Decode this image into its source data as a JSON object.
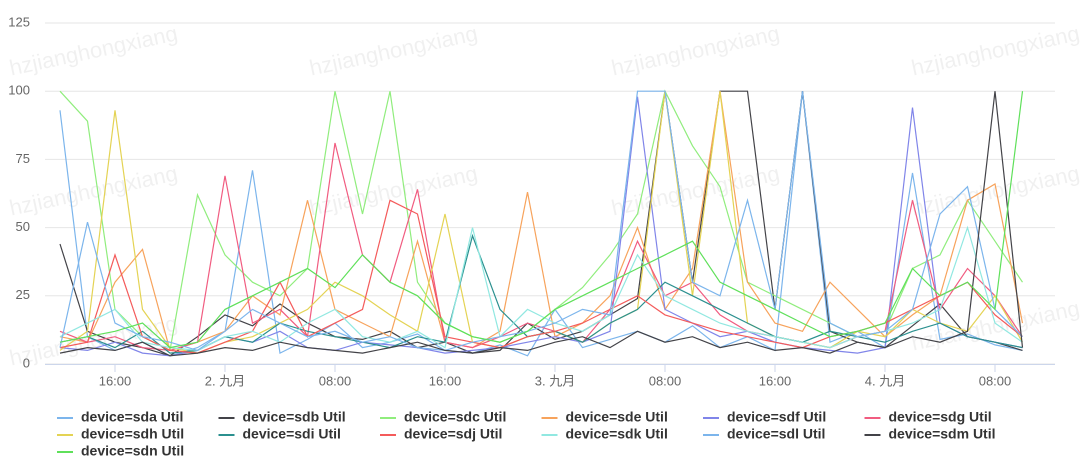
{
  "watermark": "hzjianghongxiang",
  "chart_data": {
    "type": "line",
    "x": [
      12,
      14,
      16,
      18,
      20,
      22,
      24,
      26,
      28,
      30,
      32,
      34,
      36,
      38,
      40,
      42,
      44,
      46,
      48,
      50,
      52,
      54,
      56,
      58,
      60,
      62,
      64,
      66,
      68,
      70,
      72,
      74,
      76,
      78,
      80,
      82
    ],
    "xlim": [
      11.6,
      83.6
    ],
    "xticks": [
      {
        "value": 16,
        "label": "16:00"
      },
      {
        "value": 24,
        "label": "2. 九月"
      },
      {
        "value": 32,
        "label": "08:00"
      },
      {
        "value": 40,
        "label": "16:00"
      },
      {
        "value": 48,
        "label": "3. 九月"
      },
      {
        "value": 56,
        "label": "08:00"
      },
      {
        "value": 64,
        "label": "16:00"
      },
      {
        "value": 72,
        "label": "4. 九月"
      },
      {
        "value": 80,
        "label": "08:00"
      }
    ],
    "ylim": [
      0,
      125
    ],
    "yticks": [
      0,
      25,
      50,
      75,
      100,
      125
    ],
    "grid": true,
    "series": [
      {
        "name": "device=sda Util",
        "color": "#7cb5ec",
        "values": [
          93,
          10,
          5,
          8,
          3,
          6,
          12,
          71,
          4,
          9,
          15,
          6,
          8,
          11,
          5,
          4,
          7,
          3,
          20,
          6,
          9,
          12,
          8,
          14,
          6,
          10,
          5,
          100,
          8,
          12,
          6,
          70,
          9,
          11,
          7,
          5
        ]
      },
      {
        "name": "device=sdb Util",
        "color": "#434348",
        "values": [
          44,
          12,
          8,
          6,
          3,
          10,
          18,
          14,
          22,
          15,
          10,
          9,
          12,
          6,
          8,
          4,
          5,
          15,
          9,
          12,
          18,
          24,
          100,
          30,
          100,
          100,
          20,
          100,
          12,
          8,
          6,
          14,
          22,
          10,
          8,
          5
        ]
      },
      {
        "name": "device=sdc Util",
        "color": "#90ed7d",
        "values": [
          100,
          89,
          20,
          10,
          5,
          62,
          40,
          30,
          25,
          35,
          100,
          55,
          100,
          30,
          15,
          10,
          8,
          12,
          20,
          28,
          40,
          55,
          100,
          80,
          65,
          30,
          25,
          20,
          15,
          10,
          12,
          35,
          40,
          60,
          45,
          30
        ]
      },
      {
        "name": "device=sde Util",
        "color": "#f7a35c",
        "values": [
          10,
          8,
          30,
          42,
          5,
          8,
          12,
          25,
          18,
          60,
          20,
          15,
          10,
          45,
          8,
          6,
          12,
          63,
          10,
          15,
          25,
          50,
          20,
          35,
          100,
          30,
          15,
          12,
          30,
          20,
          10,
          18,
          25,
          60,
          66,
          15
        ]
      },
      {
        "name": "device=sdf Util",
        "color": "#8085e9",
        "values": [
          6,
          5,
          8,
          4,
          3,
          5,
          10,
          8,
          12,
          6,
          5,
          8,
          7,
          6,
          4,
          5,
          6,
          8,
          10,
          8,
          12,
          98,
          20,
          15,
          10,
          12,
          8,
          6,
          5,
          4,
          6,
          94,
          15,
          10,
          8,
          6
        ]
      },
      {
        "name": "device=sdg Util",
        "color": "#f15c80",
        "values": [
          12,
          8,
          10,
          6,
          5,
          8,
          69,
          15,
          20,
          10,
          81,
          40,
          30,
          64,
          8,
          6,
          10,
          15,
          12,
          8,
          20,
          45,
          25,
          30,
          18,
          12,
          10,
          8,
          6,
          10,
          12,
          60,
          20,
          35,
          25,
          10
        ]
      },
      {
        "name": "device=sdh Util",
        "color": "#e4d354",
        "values": [
          5,
          12,
          93,
          20,
          6,
          4,
          8,
          10,
          15,
          20,
          30,
          25,
          18,
          12,
          55,
          8,
          6,
          10,
          12,
          8,
          15,
          20,
          100,
          25,
          100,
          15,
          10,
          8,
          6,
          12,
          10,
          20,
          15,
          12,
          25,
          8
        ]
      },
      {
        "name": "device=sdi Util",
        "color": "#2b908f",
        "values": [
          8,
          10,
          6,
          12,
          4,
          5,
          10,
          8,
          15,
          12,
          10,
          8,
          6,
          10,
          8,
          47,
          20,
          10,
          12,
          8,
          15,
          20,
          30,
          25,
          20,
          15,
          10,
          8,
          12,
          10,
          8,
          12,
          15,
          10,
          8,
          6
        ]
      },
      {
        "name": "device=sdj Util",
        "color": "#f45b5b",
        "values": [
          6,
          8,
          40,
          10,
          5,
          4,
          8,
          12,
          30,
          10,
          15,
          20,
          60,
          55,
          10,
          8,
          6,
          10,
          12,
          15,
          20,
          25,
          18,
          15,
          12,
          10,
          8,
          6,
          10,
          12,
          15,
          20,
          25,
          30,
          18,
          10
        ]
      },
      {
        "name": "device=sdk Util",
        "color": "#91e8e1",
        "values": [
          10,
          15,
          20,
          8,
          6,
          5,
          10,
          12,
          8,
          15,
          20,
          10,
          8,
          12,
          6,
          50,
          10,
          20,
          15,
          12,
          18,
          40,
          25,
          20,
          15,
          12,
          10,
          8,
          6,
          10,
          12,
          15,
          20,
          50,
          15,
          8
        ]
      },
      {
        "name": "device=sdl Util",
        "color": "#7cb5ec",
        "values": [
          6,
          52,
          15,
          10,
          8,
          5,
          12,
          20,
          15,
          10,
          12,
          8,
          10,
          6,
          5,
          8,
          10,
          12,
          15,
          20,
          18,
          100,
          100,
          30,
          25,
          60,
          20,
          100,
          15,
          10,
          12,
          20,
          55,
          65,
          20,
          10
        ]
      },
      {
        "name": "device=sdm Util",
        "color": "#434348",
        "values": [
          4,
          6,
          5,
          8,
          3,
          4,
          6,
          5,
          8,
          6,
          5,
          4,
          6,
          8,
          5,
          4,
          6,
          5,
          8,
          10,
          6,
          12,
          8,
          10,
          6,
          8,
          5,
          6,
          4,
          8,
          6,
          10,
          8,
          12,
          100,
          6
        ]
      },
      {
        "name": "device=sdn Util",
        "color": "#5fe05a",
        "values": [
          8,
          10,
          12,
          15,
          6,
          8,
          20,
          25,
          30,
          35,
          28,
          40,
          30,
          25,
          15,
          10,
          8,
          12,
          20,
          25,
          30,
          35,
          40,
          45,
          30,
          25,
          20,
          15,
          10,
          12,
          15,
          35,
          25,
          30,
          20,
          100
        ]
      }
    ]
  }
}
